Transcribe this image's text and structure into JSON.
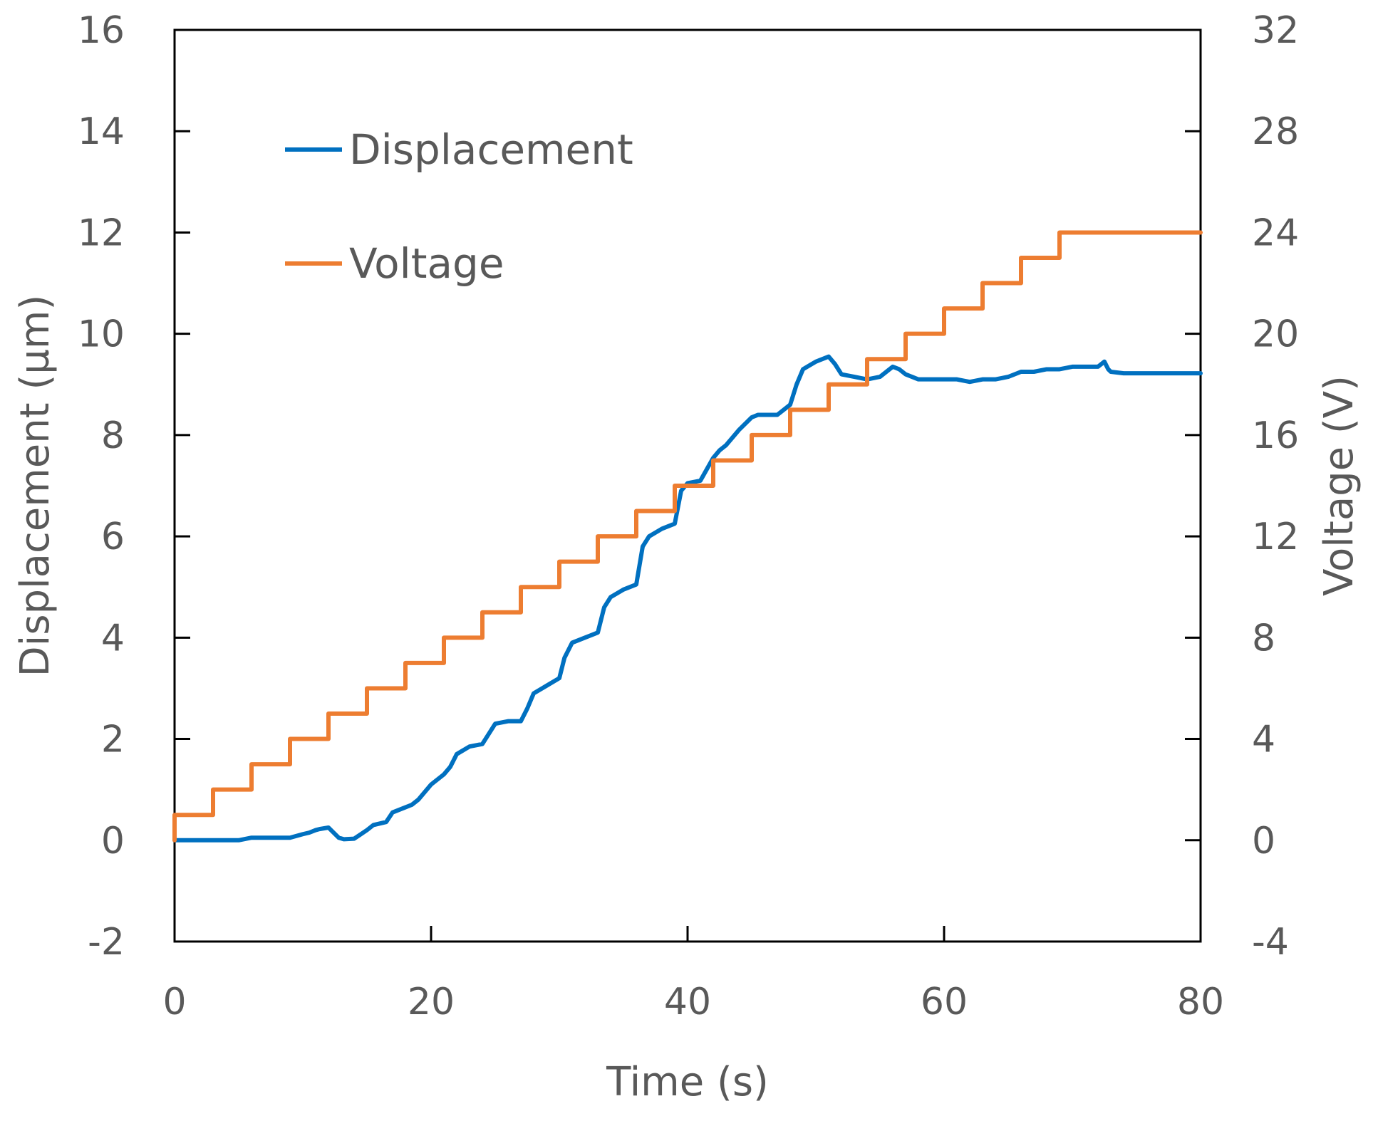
{
  "chart_data": {
    "type": "line",
    "title": "",
    "xlabel": "Time (s)",
    "ylabel": "Displacement (µm)",
    "y2label": "Voltage (V)",
    "xlim": [
      0,
      80
    ],
    "ylim": [
      -2,
      16
    ],
    "y2lim": [
      -4,
      32
    ],
    "x_ticks": [
      0,
      20,
      40,
      60,
      80
    ],
    "y_ticks": [
      -2,
      0,
      2,
      4,
      6,
      8,
      10,
      12,
      14,
      16
    ],
    "y2_ticks": [
      -4,
      0,
      4,
      8,
      12,
      16,
      20,
      24,
      28,
      32
    ],
    "grid": false,
    "legend_position": "top-left",
    "series": [
      {
        "name": "Displacement",
        "axis": "left",
        "color": "#0070C0",
        "x": [
          0,
          2,
          4,
          5,
          6,
          8,
          9,
          10,
          10.5,
          11,
          11.3,
          12,
          12.8,
          13.2,
          14,
          15,
          15.5,
          16,
          16.5,
          17,
          18,
          18.5,
          19,
          20,
          21,
          21.5,
          22,
          23,
          24,
          24.5,
          25,
          26,
          27,
          27.5,
          28,
          29,
          30,
          30.4,
          31,
          32,
          33,
          33.5,
          34,
          35,
          36,
          36.5,
          37,
          38,
          39,
          39.5,
          40,
          41,
          42,
          42.5,
          43,
          44,
          45,
          45.5,
          46,
          47,
          48,
          48.5,
          49,
          50,
          51,
          51.5,
          52,
          53,
          54,
          55,
          56,
          56.5,
          57,
          58,
          59,
          60,
          61,
          62,
          63,
          64,
          65,
          66,
          67,
          68,
          69,
          70,
          71,
          72,
          72.5,
          72.8,
          73,
          74,
          75,
          76,
          78,
          80
        ],
        "y": [
          0,
          0,
          0,
          0,
          0.05,
          0.05,
          0.05,
          0.12,
          0.15,
          0.2,
          0.22,
          0.25,
          0.05,
          0.02,
          0.03,
          0.2,
          0.3,
          0.33,
          0.36,
          0.55,
          0.65,
          0.7,
          0.8,
          1.1,
          1.3,
          1.45,
          1.7,
          1.85,
          1.9,
          2.1,
          2.3,
          2.35,
          2.35,
          2.6,
          2.9,
          3.05,
          3.2,
          3.6,
          3.9,
          4.0,
          4.1,
          4.6,
          4.8,
          4.95,
          5.05,
          5.8,
          6.0,
          6.15,
          6.25,
          6.9,
          7.05,
          7.1,
          7.55,
          7.7,
          7.8,
          8.1,
          8.35,
          8.4,
          8.4,
          8.4,
          8.6,
          9.0,
          9.3,
          9.45,
          9.55,
          9.4,
          9.2,
          9.15,
          9.1,
          9.15,
          9.35,
          9.3,
          9.2,
          9.1,
          9.1,
          9.1,
          9.1,
          9.05,
          9.1,
          9.1,
          9.15,
          9.25,
          9.25,
          9.3,
          9.3,
          9.35,
          9.35,
          9.35,
          9.45,
          9.3,
          9.25,
          9.22,
          9.22,
          9.22,
          9.22,
          9.22
        ],
        "shape": "linear"
      },
      {
        "name": "Voltage",
        "axis": "right",
        "color": "#ED7D31",
        "x": [
          0,
          3,
          6,
          9,
          12,
          15,
          18,
          21,
          24,
          27,
          30,
          33,
          36,
          39,
          42,
          45,
          48,
          51,
          54,
          57,
          60,
          63,
          66,
          69,
          80
        ],
        "y": [
          1,
          2,
          3,
          4,
          5,
          6,
          7,
          8,
          9,
          10,
          11,
          12,
          13,
          14,
          15,
          16,
          17,
          18,
          19,
          20,
          21,
          22,
          23,
          24,
          24
        ],
        "shape": "step-after"
      }
    ],
    "legend": [
      {
        "label": "Displacement",
        "color": "#0070C0"
      },
      {
        "label": "Voltage",
        "color": "#ED7D31"
      }
    ]
  }
}
